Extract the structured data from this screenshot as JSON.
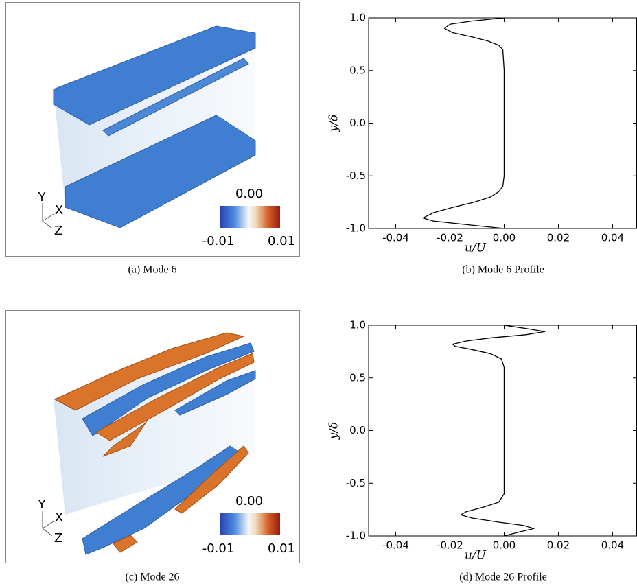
{
  "panels": [
    {
      "caption": "(a) Mode 6",
      "axes": [
        "Y",
        "X",
        "Z"
      ],
      "colorbar": {
        "center": "0.00",
        "min": "-0.01",
        "max": "0.01"
      }
    },
    {
      "caption": "(c) Mode 26",
      "axes": [
        "Y",
        "X",
        "Z"
      ],
      "colorbar": {
        "center": "0.00",
        "min": "-0.01",
        "max": "0.01"
      }
    }
  ],
  "chart_data": [
    {
      "type": "line",
      "caption": "(b) Mode 6 Profile",
      "xlabel": "u/U",
      "ylabel": "y/δ",
      "xlim": [
        -0.05,
        0.049
      ],
      "ylim": [
        -1,
        1
      ],
      "xticks": [
        -0.04,
        -0.02,
        {
          "value": 0,
          "label": "0.00"
        },
        0.02,
        0.04
      ],
      "yticks": [
        {
          "value": 1,
          "label": "1.0"
        },
        0.5,
        {
          "value": 0,
          "label": "0.0"
        },
        -0.5,
        {
          "value": -1,
          "label": "-1.0"
        }
      ],
      "series": [
        {
          "color": "#000000",
          "x": [
            0,
            -0.012,
            -0.02,
            -0.022,
            -0.019,
            -0.012,
            -0.006,
            -0.002,
            -0.0005,
            0,
            0,
            0,
            -0.0005,
            -0.002,
            -0.005,
            -0.011,
            -0.019,
            -0.026,
            -0.03,
            -0.026,
            -0.015,
            0
          ],
          "values": [
            1,
            0.97,
            0.94,
            0.9,
            0.86,
            0.82,
            0.78,
            0.74,
            0.7,
            0.5,
            0,
            -0.5,
            -0.6,
            -0.65,
            -0.7,
            -0.75,
            -0.8,
            -0.85,
            -0.9,
            -0.93,
            -0.96,
            -1
          ]
        }
      ]
    },
    {
      "type": "line",
      "caption": "(d) Mode 26 Profile",
      "xlabel": "u/U",
      "ylabel": "y/δ",
      "xlim": [
        -0.05,
        0.049
      ],
      "ylim": [
        -1,
        1
      ],
      "xticks": [
        -0.04,
        -0.02,
        {
          "value": 0,
          "label": "0.00"
        },
        0.02,
        0.04
      ],
      "yticks": [
        {
          "value": 1,
          "label": "1.0"
        },
        0.5,
        {
          "value": 0,
          "label": "0.0"
        },
        -0.5,
        {
          "value": -1,
          "label": "-1.0"
        }
      ],
      "series": [
        {
          "color": "#000000",
          "x": [
            0,
            0.008,
            0.015,
            0.008,
            -0.005,
            -0.014,
            -0.019,
            -0.018,
            -0.012,
            -0.005,
            -0.001,
            0,
            0,
            0,
            -0.002,
            -0.008,
            -0.014,
            -0.016,
            -0.012,
            -0.002,
            0.007,
            0.011,
            0.006,
            0
          ],
          "values": [
            1,
            0.97,
            0.94,
            0.91,
            0.88,
            0.85,
            0.82,
            0.8,
            0.77,
            0.73,
            0.68,
            0.6,
            0,
            -0.6,
            -0.68,
            -0.73,
            -0.77,
            -0.8,
            -0.83,
            -0.87,
            -0.9,
            -0.93,
            -0.96,
            -1
          ]
        }
      ]
    }
  ]
}
